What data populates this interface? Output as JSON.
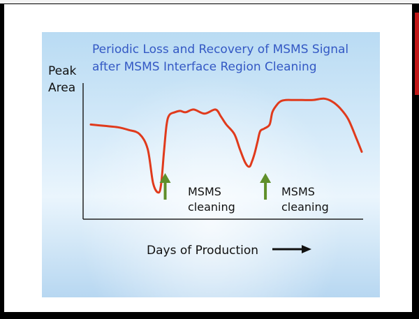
{
  "colors": {
    "curve": "#e03a1c",
    "arrow": "#5f8f2a",
    "title": "#3358c4",
    "axis": "#222222"
  },
  "chart_data": {
    "type": "line",
    "title": "Periodic Loss and Recovery of MSMS Signal\nafter MSMS Interface Region Cleaning",
    "ylabel": "Peak\nArea",
    "xlabel": "Days of Production",
    "x_direction_icon": "right-arrow-icon",
    "x_ticks_shown": false,
    "y_ticks_shown": false,
    "grid": false,
    "legend": "none",
    "xlim": [
      0,
      100
    ],
    "ylim": [
      0,
      100
    ],
    "series": [
      {
        "values_x": [
          0,
          5,
          10,
          14,
          18,
          21,
          23,
          25,
          26,
          27,
          28,
          29,
          31,
          33,
          35,
          38,
          42,
          46,
          48,
          50,
          53,
          55,
          57,
          58.5,
          59.5,
          60.5,
          61.5,
          62.5,
          64,
          66,
          67,
          68.5,
          70,
          72,
          75,
          78,
          82,
          86,
          89,
          92,
          95,
          98,
          100
        ],
        "values_y": [
          68,
          67,
          66,
          64,
          61,
          50,
          25,
          18,
          25,
          48,
          68,
          75,
          77,
          78,
          77,
          79,
          76,
          79,
          74,
          68,
          61,
          50,
          40,
          37,
          41,
          47,
          55,
          63,
          65,
          68,
          77,
          82,
          85,
          86,
          86,
          86,
          86,
          87,
          85,
          80,
          72,
          58,
          48
        ]
      }
    ],
    "annotations": [
      {
        "text": "MSMS\ncleaning",
        "x": 29,
        "icon": "up-arrow-icon"
      },
      {
        "text": "MSMS\ncleaning",
        "x": 66,
        "icon": "up-arrow-icon"
      }
    ]
  }
}
